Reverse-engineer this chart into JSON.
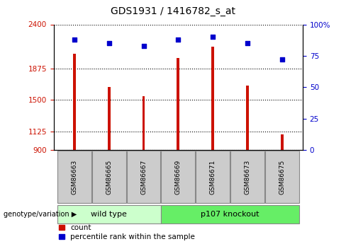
{
  "title": "GDS1931 / 1416782_s_at",
  "categories": [
    "GSM86663",
    "GSM86665",
    "GSM86667",
    "GSM86669",
    "GSM86671",
    "GSM86673",
    "GSM86675"
  ],
  "count_values": [
    2050,
    1650,
    1540,
    2000,
    2130,
    1670,
    1090
  ],
  "percentile_values": [
    88,
    85,
    83,
    88,
    90,
    85,
    72
  ],
  "groups": [
    {
      "label": "wild type",
      "start": 0,
      "end": 3,
      "color": "#ccffcc"
    },
    {
      "label": "p107 knockout",
      "start": 3,
      "end": 7,
      "color": "#66ee66"
    }
  ],
  "ylim_left": [
    900,
    2400
  ],
  "ylim_right": [
    0,
    100
  ],
  "yticks_left": [
    900,
    1125,
    1500,
    1875,
    2400
  ],
  "yticks_right": [
    0,
    25,
    50,
    75,
    100
  ],
  "bar_color": "#cc1100",
  "dot_color": "#0000cc",
  "bg_color": "#ffffff",
  "tick_label_box_color": "#cccccc",
  "legend_count_label": "count",
  "legend_percentile_label": "percentile rank within the sample",
  "genotype_label": "genotype/variation",
  "bar_width": 0.08,
  "title_fontsize": 10,
  "tick_fontsize": 7.5,
  "label_fontsize": 8
}
